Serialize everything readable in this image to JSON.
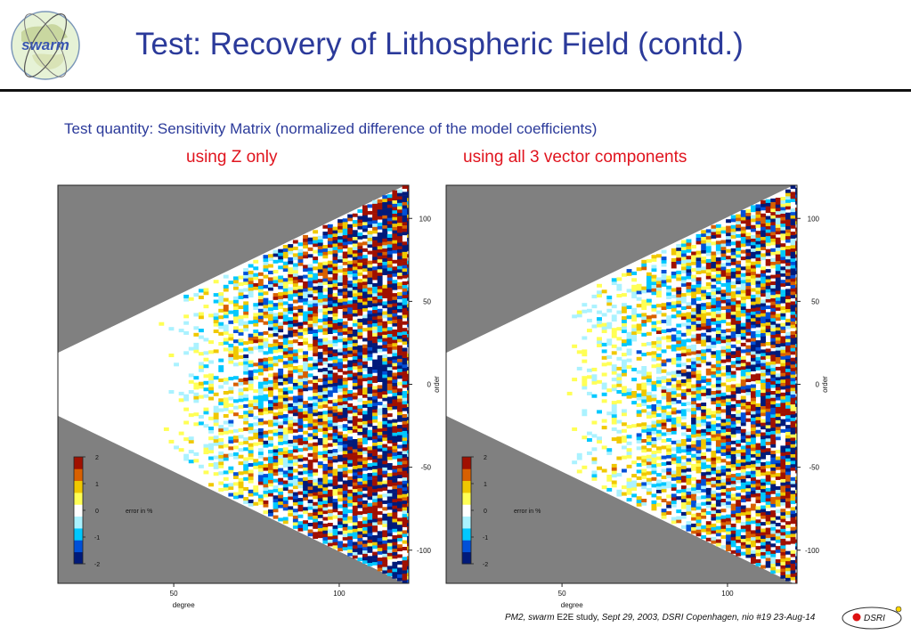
{
  "header": {
    "logo_text": "swarm",
    "title": "Test: Recovery of Lithospheric Field (contd.)"
  },
  "subtitle": "Test quantity: Sensitivity Matrix (normalized difference of the model coefficients)",
  "panels": [
    {
      "label": "using Z only"
    },
    {
      "label": "using all 3 vector components"
    }
  ],
  "chart_data": [
    {
      "type": "heatmap",
      "title": "using Z only",
      "xlabel": "degree",
      "ylabel": "order",
      "x_ticks": [
        50,
        100
      ],
      "y_ticks": [
        100,
        50,
        0,
        -50,
        -100
      ],
      "xlim": [
        15,
        121
      ],
      "ylim": [
        -120,
        120
      ],
      "colorbar": {
        "label": "error in %",
        "ticks": [
          2,
          1,
          0,
          -1,
          -2
        ],
        "range": [
          -2,
          2
        ],
        "colors": [
          "#001a7a",
          "#0050d8",
          "#00c8ff",
          "#aaf2ff",
          "#ffffff",
          "#ffff55",
          "#f0c800",
          "#d86000",
          "#a01000"
        ]
      },
      "masked_region_color": "#808080",
      "note_structure": "triangular valid region |order| <= degree; noise grows with degree"
    },
    {
      "type": "heatmap",
      "title": "using all 3 vector components",
      "xlabel": "degree",
      "ylabel": "order",
      "x_ticks": [
        50,
        100
      ],
      "y_ticks": [
        100,
        50,
        0,
        -50,
        -100
      ],
      "xlim": [
        15,
        121
      ],
      "ylim": [
        -120,
        120
      ],
      "colorbar": {
        "label": "error in %",
        "ticks": [
          2,
          1,
          0,
          -1,
          -2
        ],
        "range": [
          -2,
          2
        ],
        "colors": [
          "#001a7a",
          "#0050d8",
          "#00c8ff",
          "#aaf2ff",
          "#ffffff",
          "#ffff55",
          "#f0c800",
          "#d86000",
          "#a01000"
        ]
      },
      "masked_region_color": "#808080",
      "note_structure": "triangular valid region |order| <= degree; noise grows with degree"
    }
  ],
  "footer": {
    "part1": "PM2, swarm",
    "part2": " E2E study, ",
    "part3": "Sept 29, 2003, DSRI Copenhagen, nio #19 23-Aug-14"
  },
  "badge": {
    "text": "DSRI"
  }
}
